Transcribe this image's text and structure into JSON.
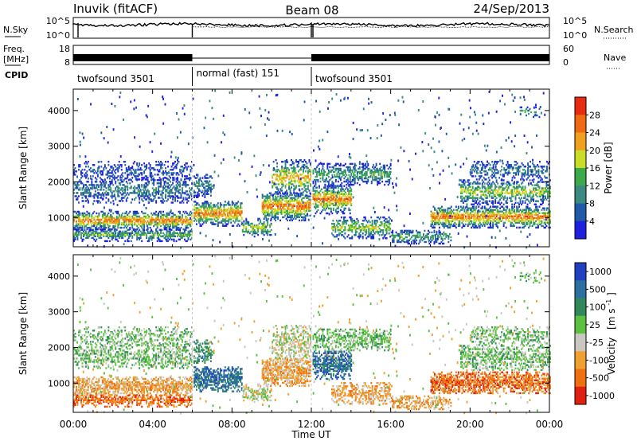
{
  "header": {
    "station": "Inuvik (fitACF)",
    "beam": "Beam 08",
    "date": "24/Sep/2013"
  },
  "noise_panel": {
    "left_label": "N.Sky",
    "right_label": "N.Search",
    "left_ticks": [
      "10^5",
      "10^0"
    ],
    "right_ticks": [
      "10^5",
      "10^0"
    ]
  },
  "freq_panel": {
    "left_label_top": "Freq.",
    "left_label_bottom": "[MHz]",
    "right_label": "Nave",
    "left_ticks": [
      "18",
      "8"
    ],
    "right_ticks": [
      "60",
      "0"
    ]
  },
  "cpid": {
    "label": "CPID",
    "segments": [
      {
        "name": "twofsound 3501",
        "start_ut": 0,
        "end_ut": 6
      },
      {
        "name": "normal (fast) 151",
        "start_ut": 6,
        "end_ut": 12
      },
      {
        "name": "twofsound 3501",
        "start_ut": 12,
        "end_ut": 24
      }
    ]
  },
  "chart_data": [
    {
      "type": "heatmap",
      "quantity": "Power",
      "ylabel": "Slant Range [km]",
      "yticks": [
        1000,
        2000,
        3000,
        4000
      ],
      "ylim": [
        180,
        4600
      ],
      "xlim": [
        0,
        24
      ],
      "colorbar": {
        "label": "Power [dB]",
        "tick_labels": [
          "4",
          "8",
          "12",
          "16",
          "20",
          "24",
          "28"
        ],
        "range": [
          0,
          32
        ],
        "colors": [
          "#1f1fe0",
          "#1f5aa8",
          "#3a8a80",
          "#3caa4a",
          "#c8dc28",
          "#f0a020",
          "#ef6a12",
          "#e82a10"
        ]
      }
    },
    {
      "type": "heatmap",
      "quantity": "Velocity",
      "ylabel": "Slant Range [km]",
      "yticks": [
        1000,
        2000,
        3000,
        4000
      ],
      "ylim": [
        180,
        4600
      ],
      "xlim": [
        0,
        24
      ],
      "colorbar": {
        "label": "Velocity",
        "label_unit": "[m s",
        "label_exp": "-1",
        "label_close": "]",
        "tick_labels": [
          "1000",
          "500",
          "100",
          "25",
          "-25",
          "-100",
          "-500",
          "-1000"
        ],
        "colors": [
          "#2040c0",
          "#2c70a0",
          "#2e8a5a",
          "#5cc040",
          "#c8c8c0",
          "#f0a030",
          "#ef7010",
          "#e02010"
        ]
      }
    }
  ],
  "xaxis": {
    "ticks": [
      "00:00",
      "04:00",
      "08:00",
      "12:00",
      "16:00",
      "20:00",
      "00:00"
    ],
    "label": "Time UT"
  }
}
